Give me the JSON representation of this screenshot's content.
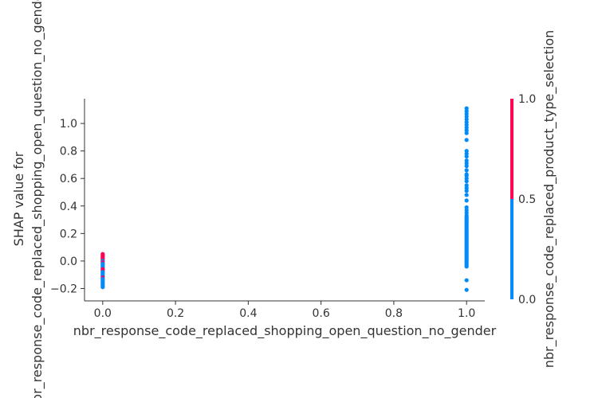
{
  "chart_data": {
    "type": "scatter",
    "xlabel": "nbr_response_code_replaced_shopping_open_question_no_gender",
    "ylabel_line1": "SHAP value for",
    "ylabel_line2": "nbr_response_code_replaced_shopping_open_question_no_gender",
    "xlim": [
      -0.05,
      1.05
    ],
    "ylim": [
      -0.29,
      1.18
    ],
    "x_ticks": [
      {
        "value": 0.0,
        "label": "0.0"
      },
      {
        "value": 0.2,
        "label": "0.2"
      },
      {
        "value": 0.4,
        "label": "0.4"
      },
      {
        "value": 0.6,
        "label": "0.6"
      },
      {
        "value": 0.8,
        "label": "0.8"
      },
      {
        "value": 1.0,
        "label": "1.0"
      }
    ],
    "y_ticks": [
      {
        "value": -0.2,
        "label": "−0.2"
      },
      {
        "value": 0.0,
        "label": "0.0"
      },
      {
        "value": 0.2,
        "label": "0.2"
      },
      {
        "value": 0.4,
        "label": "0.4"
      },
      {
        "value": 0.6,
        "label": "0.6"
      },
      {
        "value": 0.8,
        "label": "0.8"
      },
      {
        "value": 1.0,
        "label": "1.0"
      }
    ],
    "colorbar": {
      "label": "nbr_response_code_replaced_product_type_selection",
      "ticks": [
        {
          "value": 0.0,
          "label": "0.0"
        },
        {
          "value": 0.5,
          "label": "0.5"
        },
        {
          "value": 1.0,
          "label": "1.0"
        }
      ],
      "low_color": "#008bfb",
      "high_color": "#ff0052"
    },
    "points": [
      {
        "x": 0,
        "y": 0.05,
        "c": 1
      },
      {
        "x": 0,
        "y": 0.04,
        "c": 1
      },
      {
        "x": 0,
        "y": 0.03,
        "c": 1
      },
      {
        "x": 0,
        "y": 0.02,
        "c": 1
      },
      {
        "x": 0,
        "y": 0.01,
        "c": 1
      },
      {
        "x": 0,
        "y": 0.0,
        "c": 0
      },
      {
        "x": 0,
        "y": -0.01,
        "c": 1
      },
      {
        "x": 0,
        "y": -0.02,
        "c": 0
      },
      {
        "x": 0,
        "y": -0.03,
        "c": 0
      },
      {
        "x": 0,
        "y": -0.04,
        "c": 0
      },
      {
        "x": 0,
        "y": -0.05,
        "c": 0
      },
      {
        "x": 0,
        "y": -0.06,
        "c": 1
      },
      {
        "x": 0,
        "y": -0.07,
        "c": 1
      },
      {
        "x": 0,
        "y": -0.08,
        "c": 0
      },
      {
        "x": 0,
        "y": -0.09,
        "c": 0
      },
      {
        "x": 0,
        "y": -0.1,
        "c": 0
      },
      {
        "x": 0,
        "y": -0.11,
        "c": 0
      },
      {
        "x": 0,
        "y": -0.12,
        "c": 1
      },
      {
        "x": 0,
        "y": -0.13,
        "c": 0
      },
      {
        "x": 0,
        "y": -0.14,
        "c": 0
      },
      {
        "x": 0,
        "y": -0.15,
        "c": 0
      },
      {
        "x": 0,
        "y": -0.16,
        "c": 0
      },
      {
        "x": 0,
        "y": -0.17,
        "c": 0
      },
      {
        "x": 0,
        "y": -0.18,
        "c": 0
      },
      {
        "x": 0,
        "y": -0.19,
        "c": 0
      },
      {
        "x": 1,
        "y": 1.11,
        "c": 0
      },
      {
        "x": 1,
        "y": 1.09,
        "c": 0
      },
      {
        "x": 1,
        "y": 1.07,
        "c": 0
      },
      {
        "x": 1,
        "y": 1.05,
        "c": 0
      },
      {
        "x": 1,
        "y": 1.03,
        "c": 0
      },
      {
        "x": 1,
        "y": 1.01,
        "c": 0
      },
      {
        "x": 1,
        "y": 0.99,
        "c": 0
      },
      {
        "x": 1,
        "y": 0.97,
        "c": 0
      },
      {
        "x": 1,
        "y": 0.95,
        "c": 0
      },
      {
        "x": 1,
        "y": 0.93,
        "c": 0
      },
      {
        "x": 1,
        "y": 0.88,
        "c": 0
      },
      {
        "x": 1,
        "y": 0.8,
        "c": 0
      },
      {
        "x": 1,
        "y": 0.78,
        "c": 0
      },
      {
        "x": 1,
        "y": 0.76,
        "c": 0
      },
      {
        "x": 1,
        "y": 0.73,
        "c": 0
      },
      {
        "x": 1,
        "y": 0.71,
        "c": 0
      },
      {
        "x": 1,
        "y": 0.69,
        "c": 0
      },
      {
        "x": 1,
        "y": 0.66,
        "c": 0
      },
      {
        "x": 1,
        "y": 0.63,
        "c": 0
      },
      {
        "x": 1,
        "y": 0.62,
        "c": 0
      },
      {
        "x": 1,
        "y": 0.6,
        "c": 0
      },
      {
        "x": 1,
        "y": 0.58,
        "c": 0
      },
      {
        "x": 1,
        "y": 0.55,
        "c": 0
      },
      {
        "x": 1,
        "y": 0.53,
        "c": 0
      },
      {
        "x": 1,
        "y": 0.51,
        "c": 0
      },
      {
        "x": 1,
        "y": 0.48,
        "c": 0
      },
      {
        "x": 1,
        "y": 0.44,
        "c": 0
      },
      {
        "x": 1,
        "y": 0.39,
        "c": 0
      },
      {
        "x": 1,
        "y": 0.37,
        "c": 0
      },
      {
        "x": 1,
        "y": 0.35,
        "c": 0
      },
      {
        "x": 1,
        "y": 0.33,
        "c": 0
      },
      {
        "x": 1,
        "y": 0.32,
        "c": 0
      },
      {
        "x": 1,
        "y": 0.31,
        "c": 0
      },
      {
        "x": 1,
        "y": 0.3,
        "c": 0
      },
      {
        "x": 1,
        "y": 0.29,
        "c": 0
      },
      {
        "x": 1,
        "y": 0.28,
        "c": 0
      },
      {
        "x": 1,
        "y": 0.27,
        "c": 0
      },
      {
        "x": 1,
        "y": 0.26,
        "c": 0
      },
      {
        "x": 1,
        "y": 0.25,
        "c": 0
      },
      {
        "x": 1,
        "y": 0.24,
        "c": 0
      },
      {
        "x": 1,
        "y": 0.23,
        "c": 0
      },
      {
        "x": 1,
        "y": 0.22,
        "c": 0
      },
      {
        "x": 1,
        "y": 0.21,
        "c": 0
      },
      {
        "x": 1,
        "y": 0.2,
        "c": 0
      },
      {
        "x": 1,
        "y": 0.19,
        "c": 0
      },
      {
        "x": 1,
        "y": 0.18,
        "c": 0
      },
      {
        "x": 1,
        "y": 0.17,
        "c": 0
      },
      {
        "x": 1,
        "y": 0.16,
        "c": 0
      },
      {
        "x": 1,
        "y": 0.15,
        "c": 0
      },
      {
        "x": 1,
        "y": 0.14,
        "c": 0
      },
      {
        "x": 1,
        "y": 0.13,
        "c": 0
      },
      {
        "x": 1,
        "y": 0.12,
        "c": 0
      },
      {
        "x": 1,
        "y": 0.11,
        "c": 0
      },
      {
        "x": 1,
        "y": 0.1,
        "c": 0
      },
      {
        "x": 1,
        "y": 0.09,
        "c": 0
      },
      {
        "x": 1,
        "y": 0.08,
        "c": 0
      },
      {
        "x": 1,
        "y": 0.07,
        "c": 0
      },
      {
        "x": 1,
        "y": 0.06,
        "c": 0
      },
      {
        "x": 1,
        "y": 0.05,
        "c": 0
      },
      {
        "x": 1,
        "y": 0.04,
        "c": 0
      },
      {
        "x": 1,
        "y": 0.03,
        "c": 0
      },
      {
        "x": 1,
        "y": 0.02,
        "c": 0
      },
      {
        "x": 1,
        "y": 0.01,
        "c": 0
      },
      {
        "x": 1,
        "y": 0.0,
        "c": 0
      },
      {
        "x": 1,
        "y": -0.01,
        "c": 0
      },
      {
        "x": 1,
        "y": -0.02,
        "c": 0
      },
      {
        "x": 1,
        "y": -0.03,
        "c": 0
      },
      {
        "x": 1,
        "y": -0.04,
        "c": 0
      },
      {
        "x": 1,
        "y": -0.14,
        "c": 0
      },
      {
        "x": 1,
        "y": -0.21,
        "c": 0
      }
    ]
  }
}
